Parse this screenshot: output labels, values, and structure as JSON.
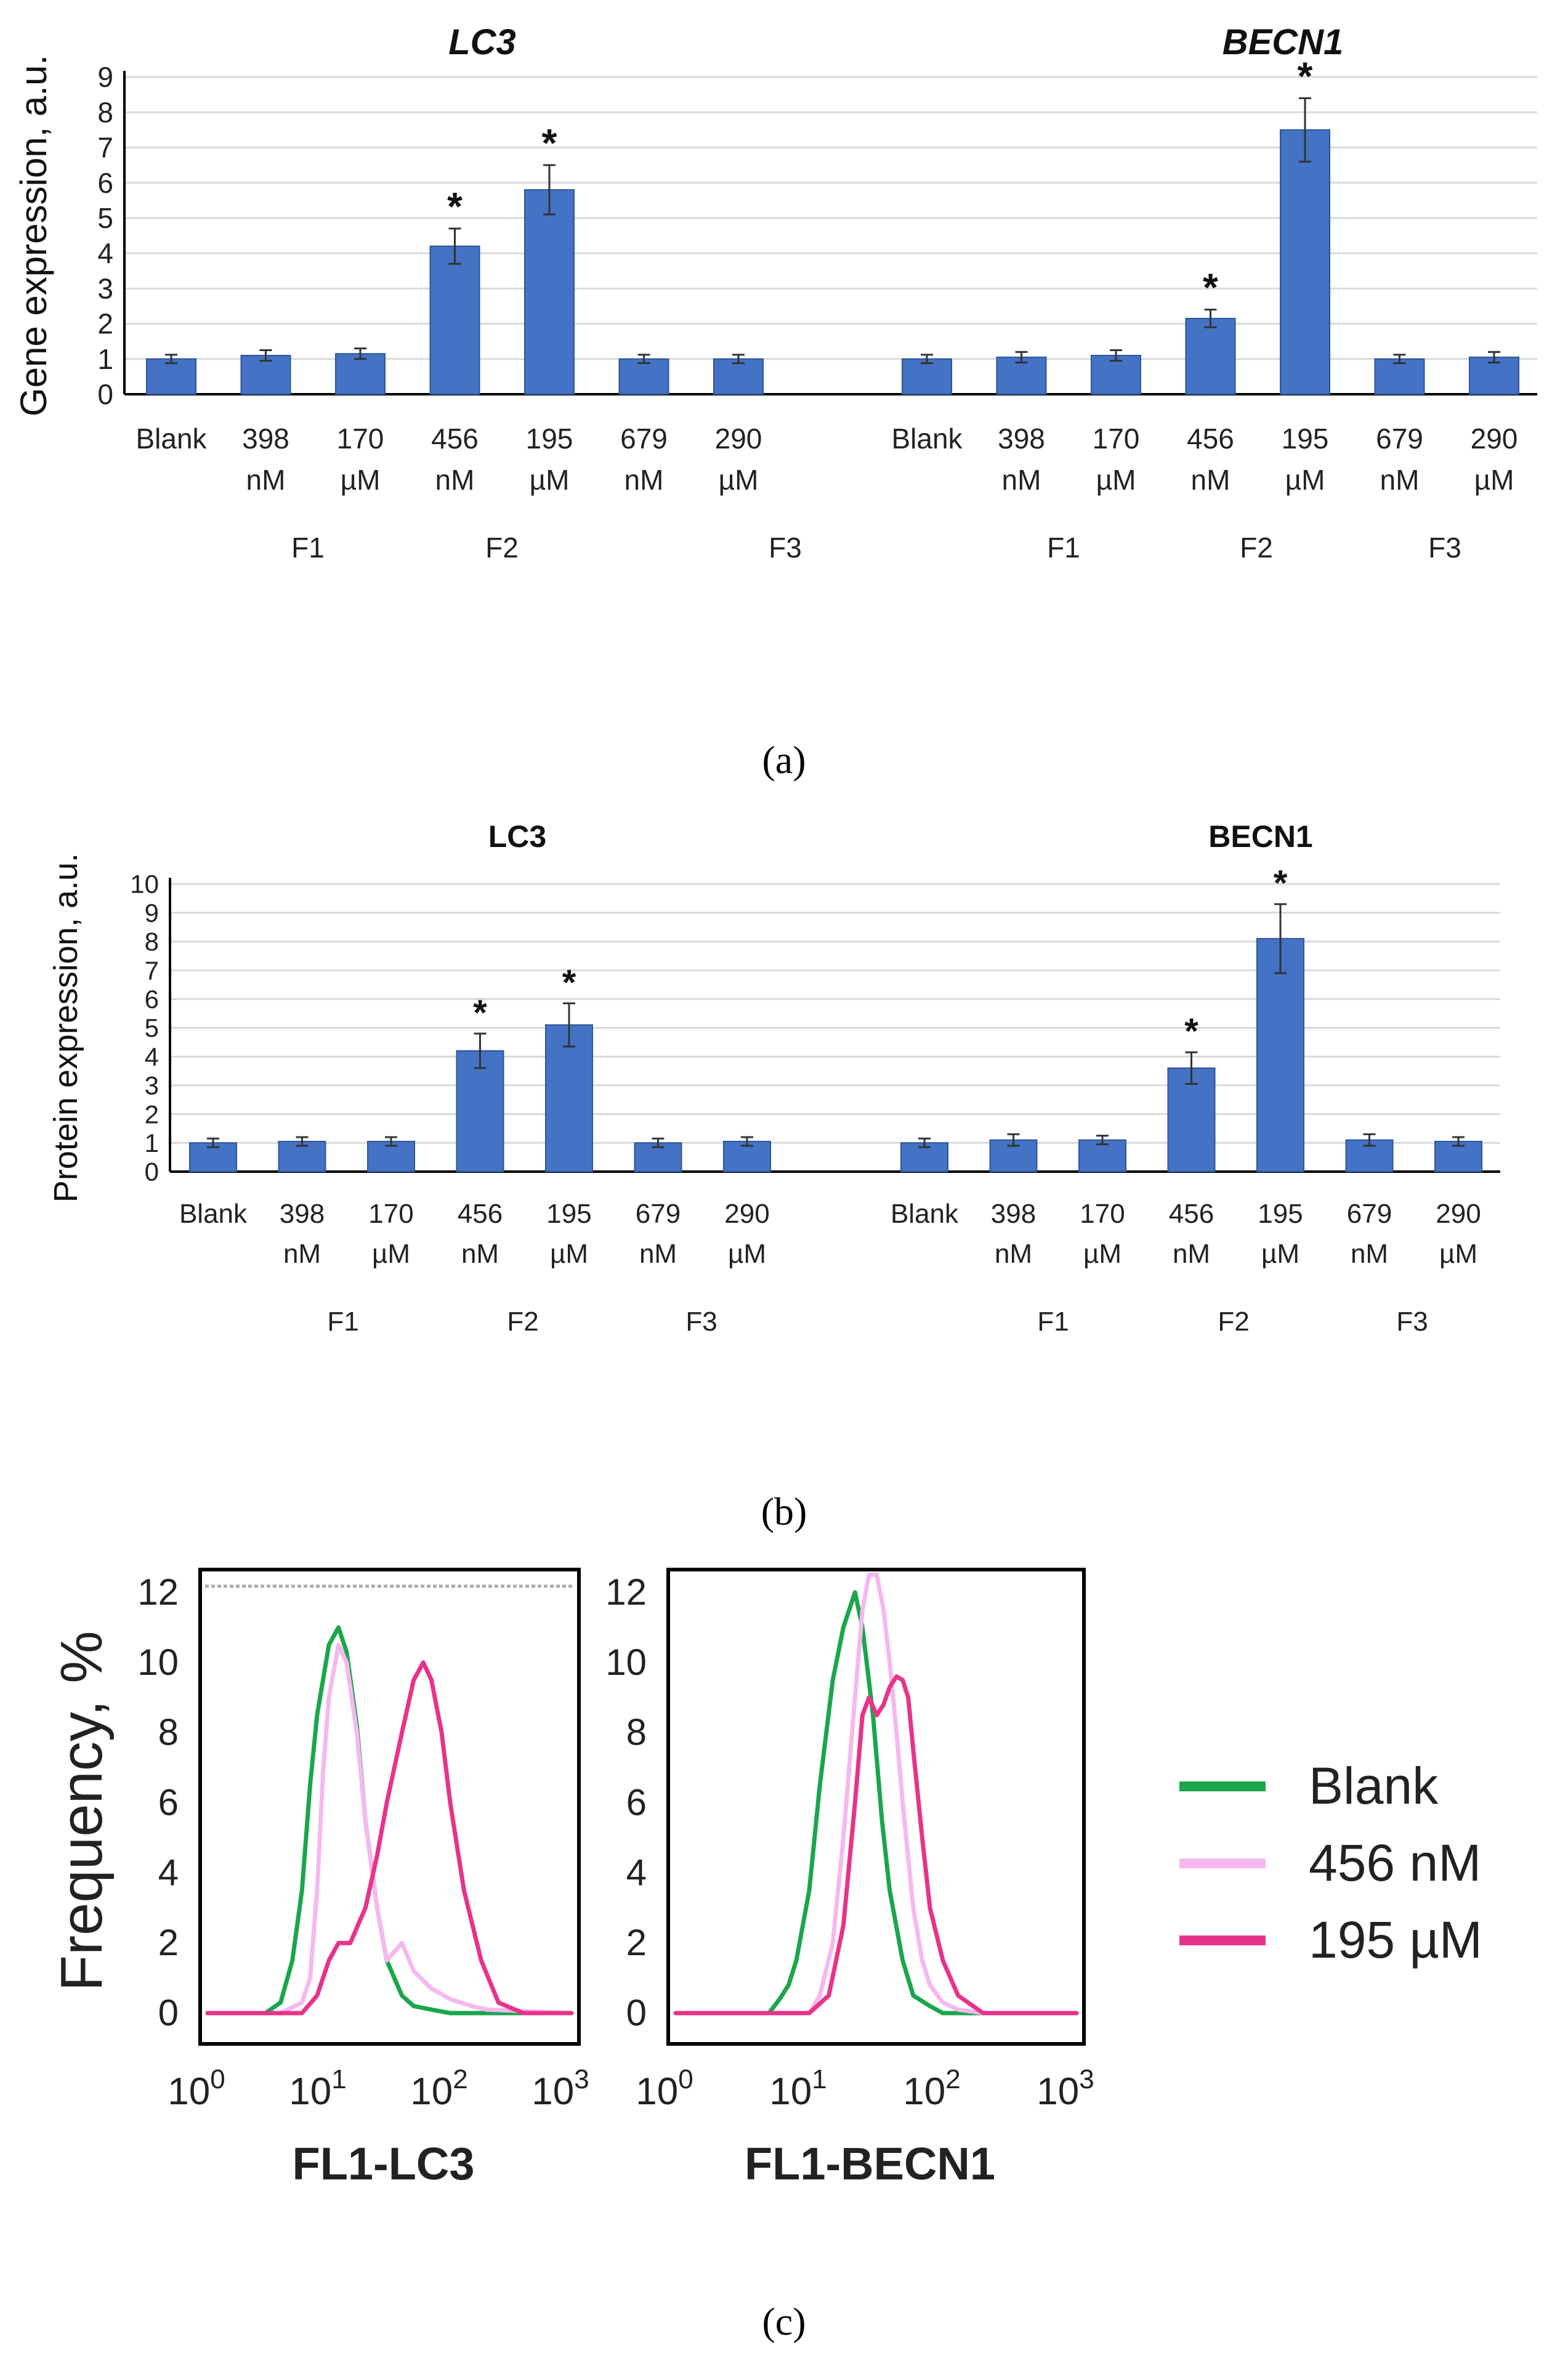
{
  "panel_labels": [
    "(a)",
    "(b)",
    "(c)"
  ],
  "colors": {
    "bar": "#4472c4",
    "bar_dark": "#2f5597",
    "grid": "#d9d9d9",
    "axis": "#000000",
    "blank": "#1aa64a",
    "nM456": "#f5b8ef",
    "uM195": "#e8338a"
  },
  "chart_data": [
    {
      "type": "bar",
      "panel": "a",
      "ylabel": "Gene expression, a.u.",
      "ylim": [
        0,
        9
      ],
      "yticks": [
        "0",
        "1",
        "2",
        "3",
        "4",
        "5",
        "6",
        "7",
        "8",
        "9"
      ],
      "grid": true,
      "groups": [
        {
          "title": "LC3",
          "categories": [
            [
              "Blank",
              ""
            ],
            [
              "398",
              "nM"
            ],
            [
              "170",
              "µM"
            ],
            [
              "456",
              "nM"
            ],
            [
              "195",
              "µM"
            ],
            [
              "679",
              "nM"
            ],
            [
              "290",
              "µM"
            ]
          ],
          "values": [
            1.0,
            1.1,
            1.15,
            4.2,
            5.8,
            1.0,
            1.0
          ],
          "errors": [
            0.12,
            0.15,
            0.15,
            0.5,
            0.7,
            0.12,
            0.12
          ],
          "significant": [
            false,
            false,
            false,
            true,
            true,
            false,
            false
          ],
          "subgroups": [
            "F1",
            "F2",
            "F3"
          ]
        },
        {
          "title": "BECN1",
          "categories": [
            [
              "Blank",
              ""
            ],
            [
              "398",
              "nM"
            ],
            [
              "170",
              "µM"
            ],
            [
              "456",
              "nM"
            ],
            [
              "195",
              "µM"
            ],
            [
              "679",
              "nM"
            ],
            [
              "290",
              "µM"
            ]
          ],
          "values": [
            1.0,
            1.05,
            1.1,
            2.15,
            7.5,
            1.0,
            1.05
          ],
          "errors": [
            0.12,
            0.15,
            0.15,
            0.25,
            0.9,
            0.12,
            0.15
          ],
          "significant": [
            false,
            false,
            false,
            true,
            true,
            false,
            false
          ],
          "subgroups": [
            "F1",
            "F2",
            "F3"
          ]
        }
      ]
    },
    {
      "type": "bar",
      "panel": "b",
      "ylabel": "Protein expression, a.u.",
      "ylim": [
        0,
        10
      ],
      "yticks": [
        "0",
        "1",
        "2",
        "3",
        "4",
        "5",
        "6",
        "7",
        "8",
        "9",
        "10"
      ],
      "grid": true,
      "groups": [
        {
          "title": "LC3",
          "categories": [
            [
              "Blank",
              ""
            ],
            [
              "398",
              "nM"
            ],
            [
              "170",
              "µM"
            ],
            [
              "456",
              "nM"
            ],
            [
              "195",
              "µM"
            ],
            [
              "679",
              "nM"
            ],
            [
              "290",
              "µM"
            ]
          ],
          "values": [
            1.0,
            1.05,
            1.05,
            4.2,
            5.1,
            1.0,
            1.05
          ],
          "errors": [
            0.15,
            0.15,
            0.15,
            0.6,
            0.75,
            0.15,
            0.15
          ],
          "significant": [
            false,
            false,
            false,
            true,
            true,
            false,
            false
          ],
          "subgroups": [
            "F1",
            "F2",
            "F3"
          ]
        },
        {
          "title": "BECN1",
          "categories": [
            [
              "Blank",
              ""
            ],
            [
              "398",
              "nM"
            ],
            [
              "170",
              "µM"
            ],
            [
              "456",
              "nM"
            ],
            [
              "195",
              "µM"
            ],
            [
              "679",
              "nM"
            ],
            [
              "290",
              "µM"
            ]
          ],
          "values": [
            1.0,
            1.1,
            1.1,
            3.6,
            8.1,
            1.1,
            1.05
          ],
          "errors": [
            0.15,
            0.2,
            0.15,
            0.55,
            1.2,
            0.2,
            0.15
          ],
          "significant": [
            false,
            false,
            false,
            true,
            true,
            false,
            false
          ],
          "subgroups": [
            "F1",
            "F2",
            "F3"
          ]
        }
      ]
    },
    {
      "type": "line",
      "panel": "c",
      "ylabel": "Frequency, %",
      "ylim": [
        0,
        12.5
      ],
      "xscale": "log",
      "xlim": [
        1,
        1000
      ],
      "yticks": [
        "0",
        "2",
        "4",
        "6",
        "8",
        "10",
        "12"
      ],
      "xticks": [
        [
          "10",
          "0"
        ],
        [
          "10",
          "1"
        ],
        [
          "10",
          "2"
        ],
        [
          "10",
          "3"
        ]
      ],
      "legend": {
        "placement": "right",
        "entries": [
          {
            "name": "Blank",
            "color_key": "blank"
          },
          {
            "name": "456 nM",
            "color_key": "nM456"
          },
          {
            "name": "195 µM",
            "color_key": "uM195"
          }
        ]
      },
      "plots": [
        {
          "xlabel": "FL1-LC3",
          "series": [
            {
              "name": "Blank",
              "x": [
                1,
                3,
                4,
                5,
                6,
                7,
                8,
                10,
                12,
                14,
                17,
                20,
                25,
                30,
                40,
                50,
                70,
                100,
                200,
                1000
              ],
              "y": [
                0,
                0,
                0.3,
                1.5,
                3.5,
                6.5,
                8.5,
                10.5,
                11.0,
                10.3,
                8.2,
                5.5,
                3.0,
                1.5,
                0.5,
                0.2,
                0.1,
                0,
                0,
                0
              ]
            },
            {
              "name": "456 nM",
              "x": [
                1,
                4,
                6,
                7,
                8,
                9,
                10,
                12,
                14,
                17,
                20,
                25,
                30,
                40,
                50,
                70,
                100,
                150,
                200,
                1000
              ],
              "y": [
                0,
                0,
                0.3,
                1.0,
                3.5,
                7.0,
                9.0,
                10.5,
                10.0,
                8.0,
                5.5,
                3.0,
                1.5,
                2.0,
                1.2,
                0.7,
                0.4,
                0.2,
                0.1,
                0
              ]
            },
            {
              "name": "195 µM",
              "x": [
                1,
                6,
                8,
                10,
                12,
                15,
                20,
                25,
                30,
                40,
                50,
                60,
                70,
                85,
                100,
                130,
                180,
                250,
                400,
                1000
              ],
              "y": [
                0,
                0,
                0.5,
                1.5,
                2.0,
                2.0,
                3.0,
                4.5,
                6.0,
                8.0,
                9.5,
                10.0,
                9.5,
                8.0,
                6.0,
                3.5,
                1.5,
                0.3,
                0,
                0
              ]
            }
          ]
        },
        {
          "xlabel": "FL1-BECN1",
          "series": [
            {
              "name": "Blank",
              "x": [
                1,
                5,
                6,
                7,
                8,
                10,
                12,
                15,
                18,
                22,
                25,
                30,
                35,
                40,
                50,
                60,
                80,
                100,
                150,
                1000
              ],
              "y": [
                0,
                0,
                0.4,
                0.8,
                1.5,
                3.5,
                6.5,
                9.5,
                11.0,
                12.0,
                11.0,
                8.5,
                5.5,
                3.5,
                1.5,
                0.5,
                0.2,
                0,
                0,
                0
              ]
            },
            {
              "name": "456 nM",
              "x": [
                1,
                10,
                12,
                15,
                18,
                22,
                25,
                28,
                32,
                36,
                40,
                45,
                50,
                60,
                70,
                80,
                100,
                130,
                200,
                1000
              ],
              "y": [
                0,
                0,
                0.5,
                2.0,
                5.0,
                9.0,
                11.5,
                12.5,
                12.5,
                11.5,
                10.0,
                8.0,
                6.0,
                3.0,
                1.5,
                0.8,
                0.3,
                0.1,
                0,
                0
              ]
            },
            {
              "name": "195 µM",
              "x": [
                1,
                10,
                14,
                18,
                22,
                25,
                28,
                32,
                36,
                40,
                45,
                50,
                55,
                60,
                70,
                80,
                100,
                130,
                200,
                1000
              ],
              "y": [
                0,
                0,
                0.5,
                2.5,
                6.0,
                8.5,
                9.0,
                8.5,
                8.8,
                9.3,
                9.6,
                9.5,
                9.0,
                7.5,
                5.0,
                3.0,
                1.5,
                0.5,
                0,
                0
              ]
            }
          ]
        }
      ]
    }
  ]
}
